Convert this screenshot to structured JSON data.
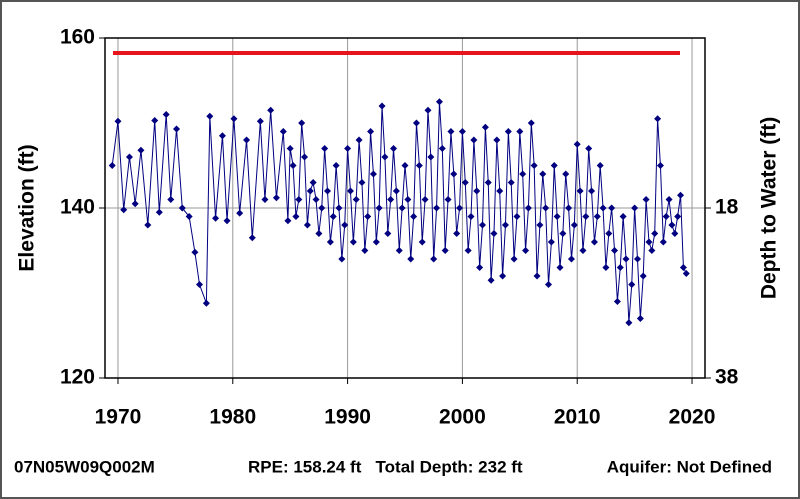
{
  "chart_data": {
    "type": "line",
    "y_label": "Elevation (ft)",
    "y2_label": "Depth to Water (ft)",
    "xlim": [
      1968.87,
      2021.13
    ],
    "xticks": [
      1970,
      1980,
      1990,
      2000,
      2010,
      2020
    ],
    "ylim": [
      120,
      160
    ],
    "yticks": [
      120,
      140,
      160
    ],
    "y2lim": [
      38,
      -2
    ],
    "y2ticks": [
      18,
      38
    ],
    "grid": true,
    "reference_line": {
      "value": 158.24,
      "color": "#e8141b"
    },
    "series": [
      {
        "color": "#000080",
        "x": [
          1969.5,
          1970.0,
          1970.5,
          1971.0,
          1971.5,
          1972.0,
          1972.6,
          1973.2,
          1973.6,
          1974.2,
          1974.6,
          1975.1,
          1975.6,
          1976.2,
          1976.7,
          1977.1,
          1977.7,
          1978.0,
          1978.5,
          1979.1,
          1979.5,
          1980.1,
          1980.6,
          1981.2,
          1981.7,
          1982.4,
          1982.8,
          1983.3,
          1983.8,
          1984.4,
          1984.8,
          1985.0,
          1985.25,
          1985.5,
          1985.75,
          1986.0,
          1986.25,
          1986.5,
          1986.75,
          1987.0,
          1987.25,
          1987.5,
          1987.75,
          1988.0,
          1988.25,
          1988.5,
          1988.75,
          1989.0,
          1989.25,
          1989.5,
          1989.75,
          1990.0,
          1990.25,
          1990.5,
          1990.75,
          1991.0,
          1991.25,
          1991.5,
          1991.75,
          1992.0,
          1992.25,
          1992.5,
          1992.75,
          1993.0,
          1993.25,
          1993.5,
          1993.75,
          1994.0,
          1994.25,
          1994.5,
          1994.75,
          1995.0,
          1995.25,
          1995.5,
          1995.75,
          1996.0,
          1996.25,
          1996.5,
          1996.75,
          1997.0,
          1997.25,
          1997.5,
          1997.75,
          1998.0,
          1998.25,
          1998.5,
          1998.75,
          1999.0,
          1999.25,
          1999.5,
          1999.75,
          2000.0,
          2000.25,
          2000.5,
          2000.75,
          2001.0,
          2001.25,
          2001.5,
          2001.75,
          2002.0,
          2002.25,
          2002.5,
          2002.75,
          2003.0,
          2003.25,
          2003.5,
          2003.75,
          2004.0,
          2004.25,
          2004.5,
          2004.75,
          2005.0,
          2005.25,
          2005.5,
          2005.75,
          2006.0,
          2006.25,
          2006.5,
          2006.75,
          2007.0,
          2007.25,
          2007.5,
          2007.75,
          2008.0,
          2008.25,
          2008.5,
          2008.75,
          2009.0,
          2009.25,
          2009.5,
          2009.75,
          2010.0,
          2010.25,
          2010.5,
          2010.75,
          2011.0,
          2011.25,
          2011.5,
          2011.75,
          2012.0,
          2012.25,
          2012.5,
          2012.75,
          2013.0,
          2013.25,
          2013.5,
          2013.75,
          2014.0,
          2014.25,
          2014.5,
          2014.75,
          2015.0,
          2015.25,
          2015.5,
          2015.75,
          2016.0,
          2016.25,
          2016.5,
          2016.75,
          2017.0,
          2017.25,
          2017.5,
          2017.75,
          2018.0,
          2018.25,
          2018.5,
          2018.75,
          2019.0,
          2019.25,
          2019.5
        ],
        "values": [
          145,
          150.2,
          139.8,
          146,
          140.5,
          146.8,
          138,
          150.3,
          139.5,
          151,
          141,
          149.3,
          140,
          139,
          134.8,
          131,
          128.8,
          150.8,
          138.8,
          148.5,
          138.5,
          150.5,
          139.4,
          148,
          136.5,
          150.2,
          141,
          151.5,
          141.2,
          149,
          138.5,
          147,
          145,
          139,
          141,
          150,
          146,
          138,
          142,
          143,
          141,
          137,
          140,
          147,
          142,
          136,
          139,
          145,
          140,
          134,
          138,
          147,
          142,
          136,
          141,
          148,
          143,
          135,
          139,
          149,
          144,
          136,
          140,
          152,
          146,
          137,
          141,
          147,
          142,
          135,
          140,
          145,
          141,
          134,
          139,
          150,
          145,
          136,
          141,
          151.5,
          146,
          134,
          140,
          152.5,
          147,
          135,
          141,
          149,
          144,
          137,
          140,
          149,
          143,
          135,
          139,
          148,
          142,
          133,
          138,
          149.5,
          143,
          131.5,
          137,
          148,
          142,
          132,
          138,
          149,
          143,
          134,
          139,
          149,
          144,
          135,
          140,
          150,
          145,
          132,
          138,
          144,
          140,
          131,
          136,
          145,
          139,
          133,
          137,
          144,
          140,
          134,
          138,
          147.5,
          142,
          135,
          139,
          147,
          142,
          136,
          139,
          145,
          140,
          133,
          137,
          140,
          135,
          129,
          133,
          139,
          134,
          126.5,
          131,
          140,
          134,
          127,
          132,
          141,
          136,
          135,
          137,
          150.5,
          145,
          136,
          139,
          141,
          138,
          137,
          139,
          141.5,
          133,
          132.3
        ]
      }
    ],
    "footer": {
      "well_id": "07N05W09Q002M",
      "details": "RPE: 158.24 ft   Total Depth: 232 ft",
      "aquifer": "Aquifer: Not Defined"
    }
  }
}
